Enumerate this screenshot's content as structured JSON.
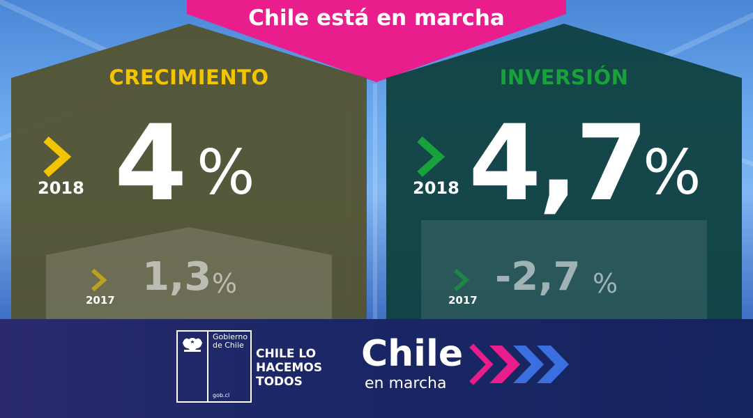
{
  "banner": {
    "text": "Chile está en marcha",
    "color": "#e91e8c"
  },
  "panels": [
    {
      "title": "CRECIMIENTO",
      "title_color": "#f2c500",
      "bg_color": "#545330",
      "chevron_color": "#f2c500",
      "current": {
        "year": "2018",
        "value": "4",
        "unit": "%"
      },
      "previous": {
        "year": "2017",
        "value": "1,3",
        "unit": "%"
      }
    },
    {
      "title": "INVERSIÓN",
      "title_color": "#17a23a",
      "bg_color": "#0f4040",
      "chevron_color": "#17a23a",
      "current": {
        "year": "2018",
        "value": "4,7",
        "unit": "%"
      },
      "previous": {
        "year": "2017",
        "value": "-2,7",
        "unit": "%"
      }
    }
  ],
  "footer": {
    "gov_logo_text": "Gobierno de Chile",
    "gov_url": "gob.cl",
    "slogan": "CHILE LO HACEMOS TODOS",
    "brand_name": "Chile",
    "brand_sub": "en marcha",
    "brand_chevron_colors": [
      "#e91e8c",
      "#e91e8c",
      "#3b6fe0",
      "#3b6fe0"
    ]
  }
}
